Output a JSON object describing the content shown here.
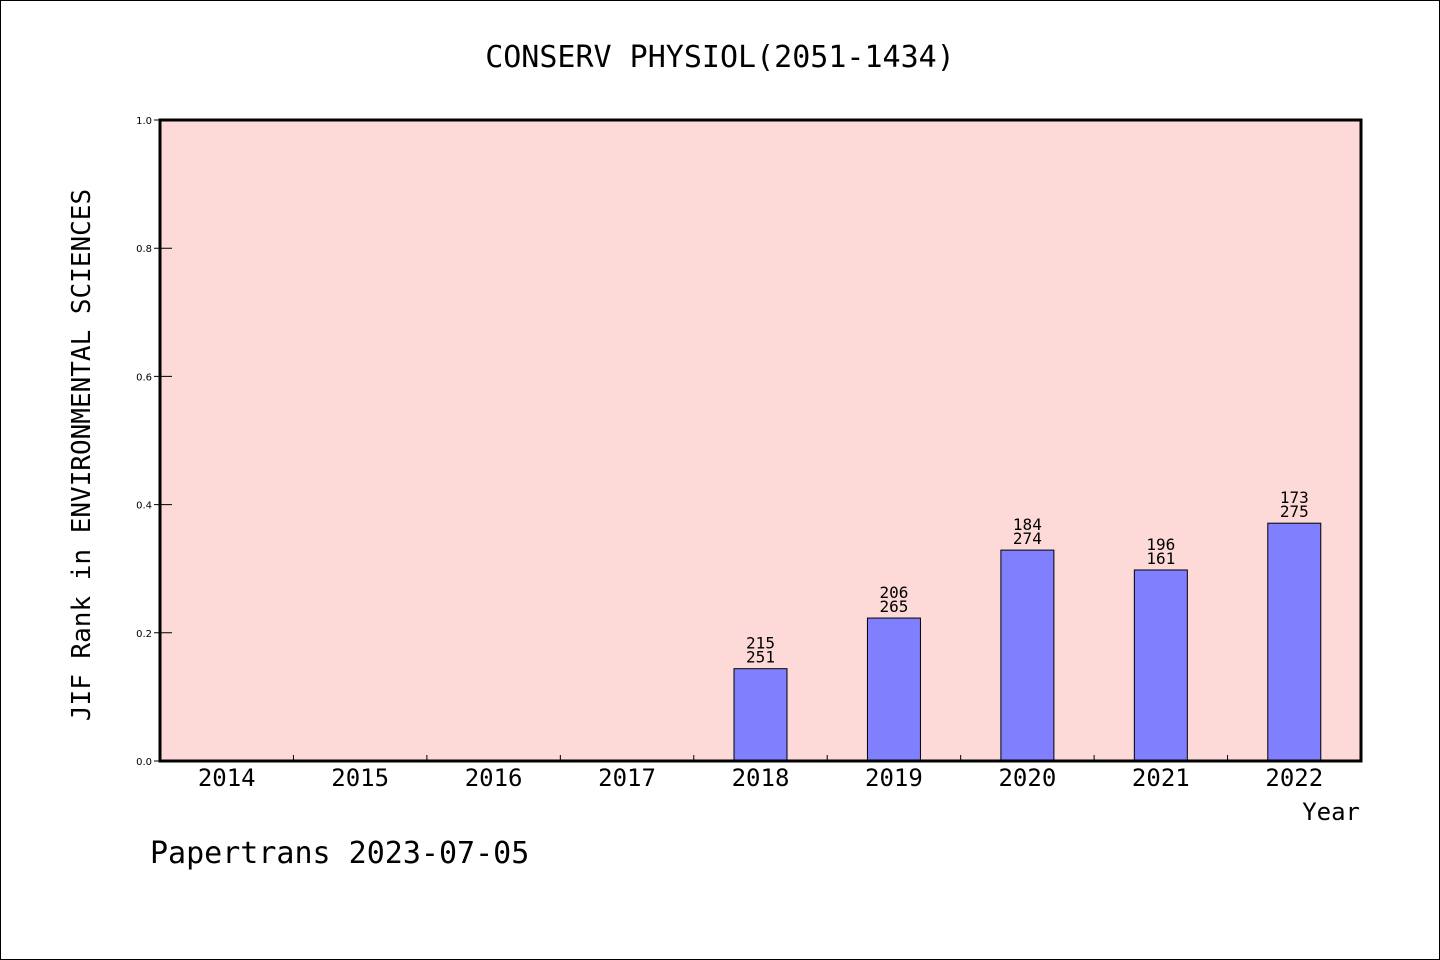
{
  "footer": "Papertrans 2023-07-05",
  "colors": {
    "plot_background": "#fddad8",
    "bar_fill": "#8080ff",
    "axis": "#000000"
  },
  "chart_data": {
    "type": "bar",
    "title": "CONSERV PHYSIOL(2051-1434)",
    "xlabel": "Year",
    "ylabel": "JIF Rank in ENVIRONMENTAL SCIENCES",
    "ylim": [
      0,
      1.0
    ],
    "yticks": [
      "0.0",
      "0.2",
      "0.4",
      "0.6",
      "0.8",
      "1.0"
    ],
    "categories": [
      "2014",
      "2015",
      "2016",
      "2017",
      "2018",
      "2019",
      "2020",
      "2021",
      "2022"
    ],
    "values": [
      null,
      null,
      null,
      null,
      0.144,
      0.223,
      0.329,
      0.298,
      0.371
    ],
    "labels_top": [
      null,
      null,
      null,
      null,
      "215",
      "206",
      "184",
      "196",
      "173"
    ],
    "labels_bottom": [
      null,
      null,
      null,
      null,
      "251",
      "265",
      "274",
      "161",
      "275"
    ],
    "grid": false,
    "legend": "none"
  }
}
